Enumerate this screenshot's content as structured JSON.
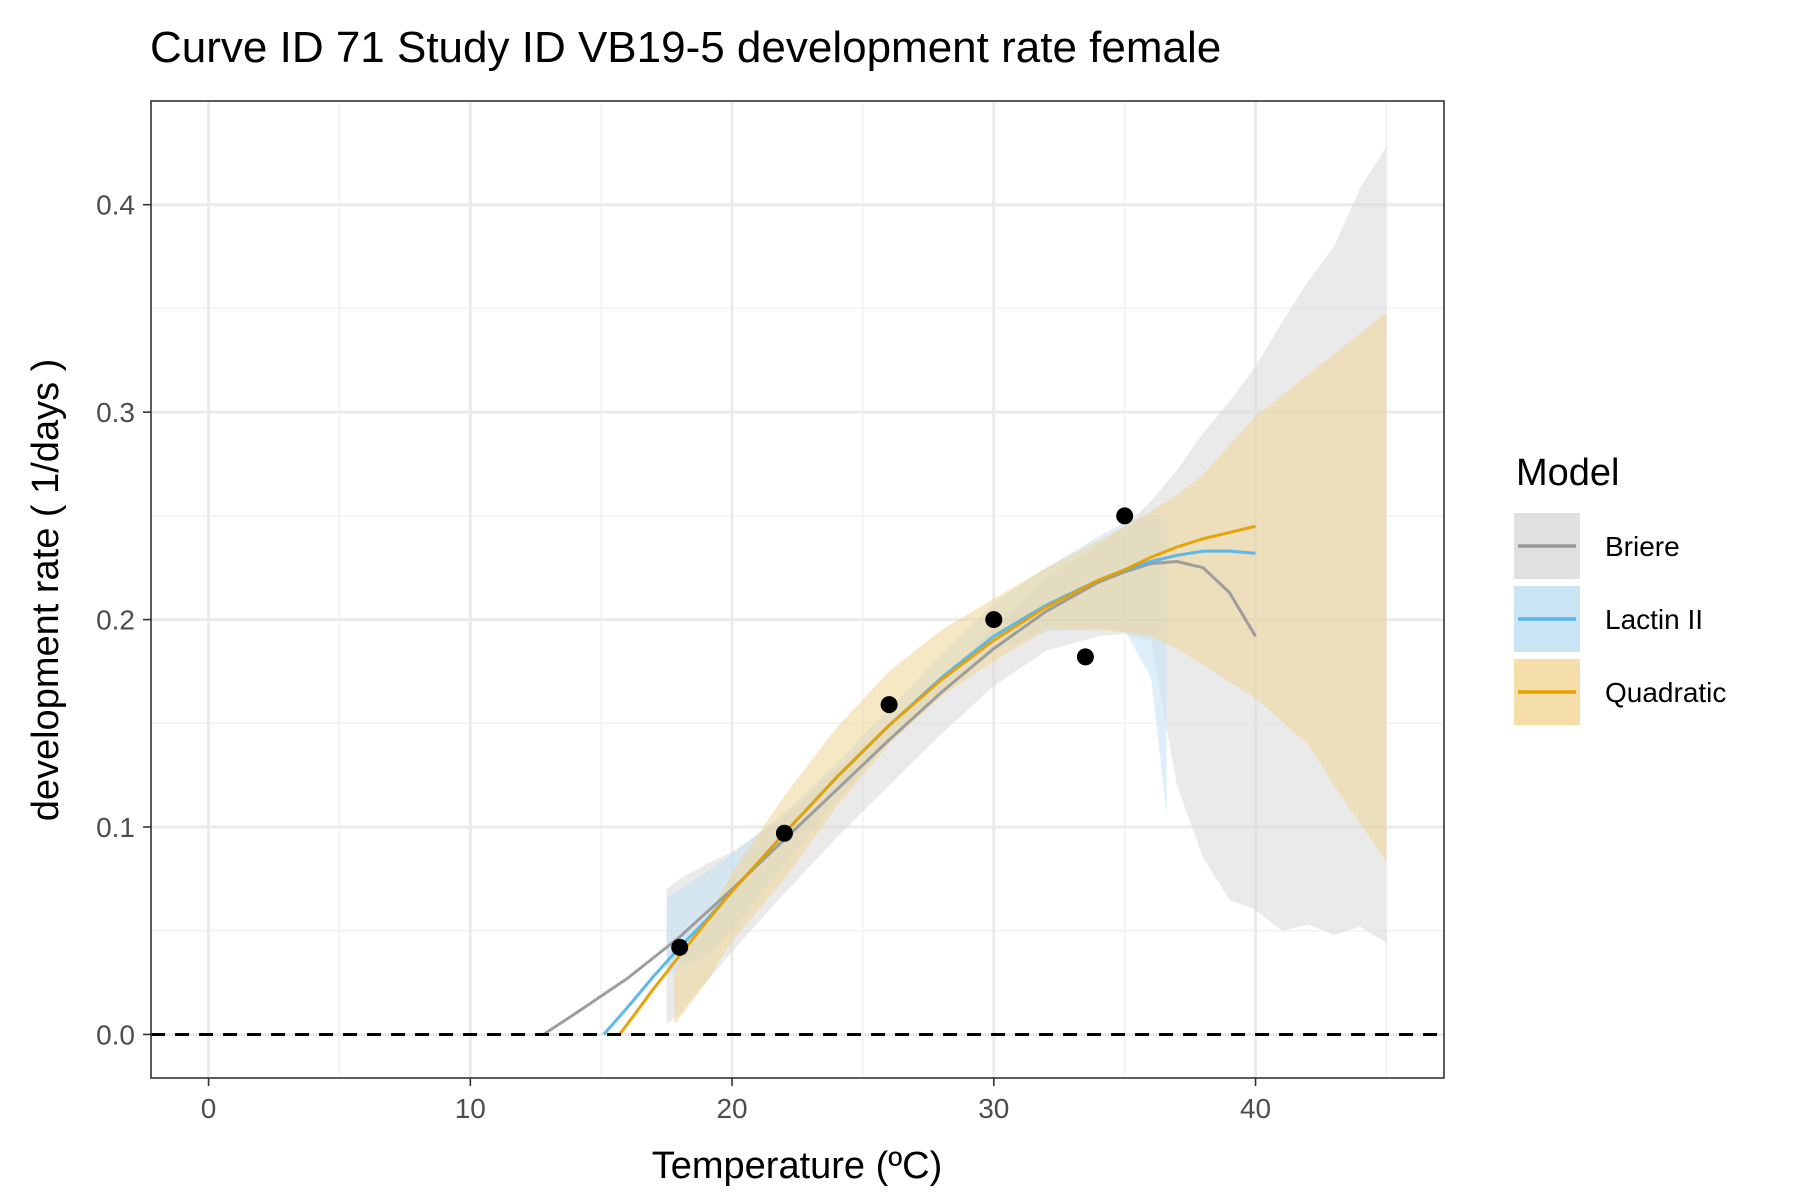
{
  "chart_data": {
    "type": "line",
    "title": "Curve ID 71 Study ID VB19-5 development rate female",
    "xlabel": "Temperature (ºC)",
    "ylabel": "development rate ( 1/days )",
    "xlim": [
      -2.2,
      47.2
    ],
    "ylim": [
      -0.021,
      0.45
    ],
    "x_ticks": [
      0,
      10,
      20,
      30,
      40
    ],
    "x_tick_labels": [
      "0",
      "10",
      "20",
      "30",
      "40"
    ],
    "y_ticks": [
      0.0,
      0.1,
      0.2,
      0.3,
      0.4
    ],
    "y_tick_labels": [
      "0.0",
      "0.1",
      "0.2",
      "0.3",
      "0.4"
    ],
    "grid": true,
    "reference_line": {
      "y": 0.0,
      "style": "dashed",
      "color": "#000000"
    },
    "legend": {
      "title": "Model",
      "placement": "right",
      "entries": [
        {
          "label": "Briere",
          "line_color": "#999999",
          "fill_color": "#e0e0e0"
        },
        {
          "label": "Lactin II",
          "line_color": "#56b4e9",
          "fill_color": "#c9e5f5"
        },
        {
          "label": "Quadratic",
          "line_color": "#e69f00",
          "fill_color": "#f5deaa"
        }
      ]
    },
    "points": {
      "x": [
        18,
        22,
        26,
        30,
        33.5,
        35
      ],
      "y": [
        0.042,
        0.097,
        0.159,
        0.2,
        0.182,
        0.25
      ]
    },
    "series": [
      {
        "name": "Briere",
        "line_color": "#999999",
        "fill_color": "#d9d9d9",
        "x": [
          12.8,
          14,
          16,
          18,
          20,
          22,
          24,
          26,
          28,
          30,
          32,
          34,
          35,
          36,
          37,
          38,
          39,
          40
        ],
        "y": [
          0.0,
          0.01,
          0.027,
          0.047,
          0.07,
          0.094,
          0.118,
          0.142,
          0.165,
          0.186,
          0.204,
          0.218,
          0.223,
          0.227,
          0.228,
          0.225,
          0.213,
          0.192
        ],
        "band_x": [
          17.5,
          18,
          19,
          20,
          22,
          24,
          26,
          28,
          30,
          32,
          34,
          35,
          36,
          37,
          38,
          39,
          40,
          41,
          42,
          43,
          44,
          45
        ],
        "band_upper": [
          0.07,
          0.075,
          0.082,
          0.088,
          0.105,
          0.128,
          0.15,
          0.172,
          0.196,
          0.22,
          0.236,
          0.245,
          0.257,
          0.272,
          0.29,
          0.305,
          0.322,
          0.343,
          0.363,
          0.38,
          0.408,
          0.428
        ],
        "band_lower": [
          0.005,
          0.01,
          0.025,
          0.04,
          0.068,
          0.095,
          0.12,
          0.145,
          0.168,
          0.185,
          0.192,
          0.193,
          0.19,
          0.12,
          0.085,
          0.065,
          0.06,
          0.05,
          0.053,
          0.048,
          0.052,
          0.044
        ]
      },
      {
        "name": "Lactin II",
        "line_color": "#56b4e9",
        "fill_color": "#c5e2f4",
        "x": [
          15.1,
          16,
          17,
          18,
          19,
          20,
          22,
          24,
          26,
          28,
          30,
          32,
          34,
          35,
          36,
          37,
          38,
          39,
          40
        ],
        "y": [
          0.0,
          0.013,
          0.028,
          0.042,
          0.055,
          0.069,
          0.097,
          0.124,
          0.149,
          0.172,
          0.192,
          0.207,
          0.219,
          0.224,
          0.228,
          0.231,
          0.233,
          0.233,
          0.232
        ],
        "band_x": [
          17.5,
          18,
          19,
          20,
          22,
          24,
          26,
          28,
          30,
          32,
          34,
          35,
          36,
          36.3,
          36.6
        ],
        "band_upper": [
          0.066,
          0.07,
          0.078,
          0.087,
          0.107,
          0.131,
          0.157,
          0.183,
          0.208,
          0.225,
          0.24,
          0.247,
          0.25,
          0.25,
          0.248
        ],
        "band_lower": [
          0.028,
          0.032,
          0.038,
          0.05,
          0.082,
          0.113,
          0.142,
          0.165,
          0.185,
          0.194,
          0.196,
          0.195,
          0.172,
          0.14,
          0.105
        ]
      },
      {
        "name": "Quadratic",
        "line_color": "#e69f00",
        "fill_color": "#eed395",
        "x": [
          15.7,
          16,
          17,
          18,
          19,
          20,
          22,
          24,
          26,
          28,
          30,
          32,
          34,
          35,
          36,
          37,
          38,
          39,
          40
        ],
        "y": [
          0.0,
          0.005,
          0.022,
          0.038,
          0.054,
          0.069,
          0.097,
          0.124,
          0.149,
          0.171,
          0.19,
          0.206,
          0.219,
          0.224,
          0.23,
          0.235,
          0.239,
          0.242,
          0.245
        ],
        "band_x": [
          17.8,
          18,
          19,
          20,
          22,
          24,
          26,
          28,
          30,
          32,
          34,
          35,
          36,
          37,
          38,
          40,
          42,
          43,
          45
        ],
        "band_upper": [
          0.03,
          0.035,
          0.055,
          0.078,
          0.115,
          0.148,
          0.175,
          0.195,
          0.21,
          0.225,
          0.238,
          0.245,
          0.252,
          0.26,
          0.27,
          0.298,
          0.318,
          0.328,
          0.348
        ],
        "band_lower": [
          0.005,
          0.008,
          0.025,
          0.045,
          0.075,
          0.11,
          0.14,
          0.163,
          0.18,
          0.195,
          0.195,
          0.194,
          0.192,
          0.186,
          0.178,
          0.162,
          0.14,
          0.12,
          0.083
        ]
      }
    ]
  }
}
